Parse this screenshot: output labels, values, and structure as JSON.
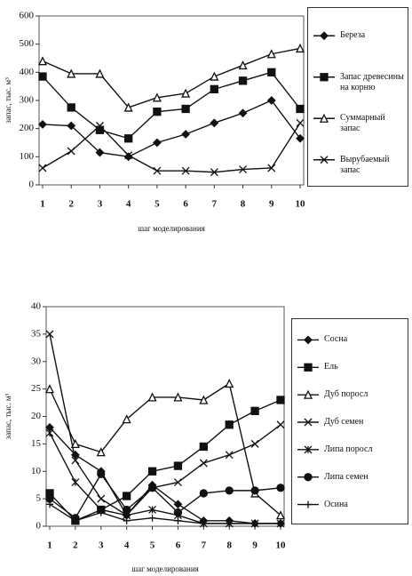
{
  "chart_data": [
    {
      "type": "line",
      "ylabel": "запас, тыс. м³",
      "xlabel": "шаг моделирования",
      "x": [
        1,
        2,
        3,
        4,
        5,
        6,
        7,
        8,
        9,
        10
      ],
      "xlim": [
        1,
        10
      ],
      "xticks": [
        1,
        2,
        3,
        4,
        5,
        6,
        7,
        8,
        9,
        10
      ],
      "ylim": [
        0,
        600
      ],
      "yticks": [
        0,
        100,
        200,
        300,
        400,
        500,
        600
      ],
      "series": [
        {
          "name": "Береза",
          "color": "#111",
          "marker": "diamond",
          "values": [
            215,
            210,
            115,
            100,
            150,
            180,
            220,
            255,
            300,
            165
          ]
        },
        {
          "name": "Запас древесины на корню",
          "color": "#111",
          "marker": "square",
          "values": [
            385,
            275,
            195,
            165,
            260,
            270,
            340,
            370,
            400,
            270
          ]
        },
        {
          "name": "Суммарный запас",
          "color": "#111",
          "marker": "triangle",
          "values": [
            440,
            395,
            395,
            275,
            310,
            325,
            385,
            425,
            465,
            485
          ]
        },
        {
          "name": "Вырубаемый запас",
          "color": "#111",
          "marker": "x",
          "values": [
            60,
            120,
            210,
            105,
            50,
            50,
            45,
            55,
            60,
            220
          ]
        }
      ]
    },
    {
      "type": "line",
      "ylabel": "запас, тыс. м³",
      "xlabel": "шаг моделирования",
      "x": [
        1,
        2,
        3,
        4,
        5,
        6,
        7,
        8,
        9,
        10
      ],
      "xlim": [
        1,
        10
      ],
      "xticks": [
        1,
        2,
        3,
        4,
        5,
        6,
        7,
        8,
        9,
        10
      ],
      "ylim": [
        0,
        40
      ],
      "yticks": [
        0,
        5,
        10,
        15,
        20,
        25,
        30,
        35,
        40
      ],
      "series": [
        {
          "name": "Сосна",
          "color": "#111",
          "marker": "diamond",
          "values": [
            18,
            13,
            10,
            2,
            7.5,
            4,
            1,
            1,
            0.5,
            0.5
          ]
        },
        {
          "name": "Ель",
          "color": "#111",
          "marker": "square",
          "values": [
            6,
            1,
            3,
            5.5,
            10,
            11,
            14.5,
            18.5,
            21,
            23
          ]
        },
        {
          "name": "Дуб поросл",
          "color": "#111",
          "marker": "triangle",
          "values": [
            25,
            15,
            13.5,
            19.5,
            23.5,
            23.5,
            23,
            26,
            6,
            2
          ]
        },
        {
          "name": "Дуб семен",
          "color": "#111",
          "marker": "x",
          "values": [
            35,
            12,
            5,
            2,
            7,
            8,
            11.5,
            13,
            15,
            18.5
          ]
        },
        {
          "name": "Липа поросл",
          "color": "#111",
          "marker": "star",
          "values": [
            17,
            8,
            3,
            2,
            3,
            2,
            0.5,
            0.5,
            0.5,
            0.5
          ]
        },
        {
          "name": "Липа семен",
          "color": "#111",
          "marker": "circle",
          "values": [
            5,
            1.5,
            9.5,
            3,
            7,
            2.5,
            6,
            6.5,
            6.5,
            7
          ]
        },
        {
          "name": "Осина",
          "color": "#111",
          "marker": "plus",
          "values": [
            4,
            1,
            2.5,
            1,
            1.5,
            1,
            0.5,
            0.5,
            0.5,
            0.5
          ]
        }
      ]
    }
  ]
}
